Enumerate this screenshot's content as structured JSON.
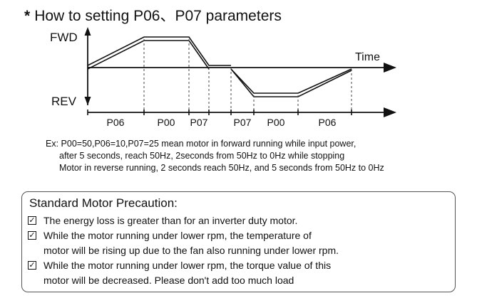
{
  "title": {
    "star": "*",
    "text": "How to setting P06、P07 parameters"
  },
  "diagram": {
    "fwd_label": "FWD",
    "rev_label": "REV",
    "time_label": "Time",
    "segments": [
      "P06",
      "P00",
      "P07",
      "P07",
      "P00",
      "P06"
    ]
  },
  "example": {
    "lines": [
      "Ex: P00=50,P06=10,P07=25 mean motor in forward running while input power,",
      "after 5 seconds, reach 50Hz, 2seconds from 50Hz to 0Hz while stopping",
      "Motor in reverse running, 2 seconds reach 50Hz, and 5 seconds from 50Hz to 0Hz"
    ]
  },
  "precaution": {
    "title": "Standard Motor Precaution:",
    "check_icon": "check-box-icon",
    "items": [
      {
        "lines": [
          "The energy loss is greater than for an inverter duty motor."
        ]
      },
      {
        "lines": [
          "While the motor running under lower rpm, the temperature of",
          "motor will be rising up due to the fan also running under lower rpm."
        ]
      },
      {
        "lines": [
          "While the motor running under lower rpm, the torque value of this",
          "motor will be decreased. Please don't add too much load"
        ]
      }
    ]
  }
}
